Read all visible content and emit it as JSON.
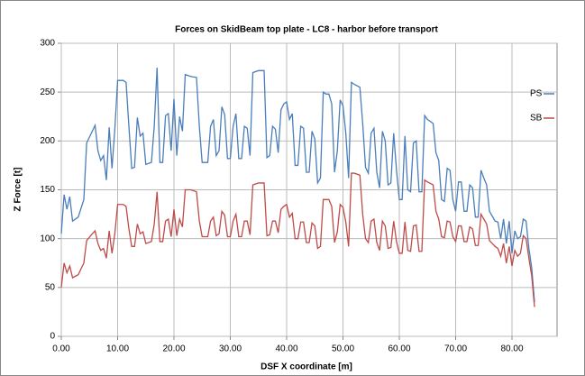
{
  "chart_data": {
    "type": "line",
    "title": "Forces on SkidBeam top plate - LC8 - harbor before transport",
    "xlabel": "DSF X coordinate [m]",
    "ylabel": "Z Force [t]",
    "x": [
      0,
      0.5,
      1,
      1.5,
      2,
      3,
      4,
      4.5,
      5.5,
      6,
      6.5,
      7,
      7.5,
      8,
      8.5,
      9,
      9.5,
      10,
      11,
      11.5,
      12,
      12.5,
      13,
      13.5,
      14,
      14.5,
      15,
      16,
      16.5,
      17,
      17.5,
      18,
      18.5,
      19,
      19.5,
      20,
      20.5,
      21,
      21.5,
      22,
      23,
      24,
      24.5,
      25,
      26,
      26.5,
      27,
      27.5,
      28,
      28.5,
      29,
      29.5,
      30,
      30.5,
      31,
      31.5,
      32,
      32.5,
      33,
      33.5,
      34,
      35,
      36,
      36.5,
      37,
      37.5,
      38,
      38.5,
      39,
      39.5,
      40,
      40.5,
      41,
      41.5,
      42,
      42.5,
      43,
      43.5,
      44,
      44.5,
      45,
      45.5,
      46,
      46.5,
      47,
      47.5,
      48,
      48.5,
      49,
      49.5,
      50,
      50.5,
      51,
      51.5,
      52,
      53,
      53.5,
      54,
      54.5,
      55,
      55.5,
      56,
      56.5,
      57,
      57.5,
      58,
      58.5,
      59,
      59.5,
      60,
      60.5,
      61,
      61.5,
      62,
      62.5,
      63,
      63.5,
      64,
      64.5,
      65,
      66,
      66.5,
      67,
      67.5,
      68,
      68.5,
      69,
      69.5,
      70,
      70.5,
      71,
      71.5,
      72,
      72.5,
      73,
      73.5,
      74,
      74.5,
      75,
      75.5,
      76,
      76.5,
      77,
      77.5,
      78,
      78.5,
      79,
      79.5,
      80,
      80.5,
      81,
      81.5,
      82,
      82.5,
      83,
      83.5,
      84
    ],
    "series": [
      {
        "name": "PS",
        "color": "#4a7ebb",
        "values": [
          105,
          145,
          130,
          143,
          118,
          122,
          140,
          198,
          210,
          216,
          190,
          180,
          185,
          160,
          214,
          172,
          212,
          262,
          262,
          260,
          215,
          172,
          173,
          224,
          205,
          208,
          176,
          178,
          215,
          275,
          178,
          178,
          226,
          228,
          190,
          243,
          185,
          225,
          210,
          268,
          266,
          265,
          215,
          178,
          178,
          215,
          222,
          185,
          190,
          235,
          227,
          182,
          182,
          215,
          228,
          182,
          182,
          215,
          213,
          185,
          270,
          272,
          272,
          183,
          185,
          215,
          212,
          188,
          232,
          238,
          240,
          222,
          228,
          175,
          175,
          215,
          213,
          168,
          168,
          210,
          202,
          157,
          162,
          250,
          248,
          248,
          238,
          168,
          190,
          242,
          236,
          208,
          162,
          260,
          258,
          255,
          218,
          173,
          167,
          208,
          213,
          168,
          152,
          210,
          200,
          155,
          157,
          208,
          170,
          140,
          140,
          205,
          150,
          148,
          198,
          200,
          148,
          148,
          226,
          222,
          218,
          188,
          180,
          140,
          138,
          172,
          170,
          140,
          128,
          158,
          158,
          128,
          128,
          155,
          152,
          122,
          122,
          170,
          162,
          155,
          128,
          123,
          118,
          117,
          100,
          120,
          95,
          118,
          85,
          108,
          100,
          102,
          120,
          118,
          90,
          70,
          35
        ]
      },
      {
        "name": "SB",
        "color": "#be4b48",
        "values": [
          50,
          75,
          65,
          72,
          60,
          63,
          75,
          98,
          105,
          108,
          95,
          88,
          90,
          80,
          108,
          85,
          105,
          135,
          135,
          133,
          110,
          92,
          92,
          115,
          105,
          107,
          95,
          97,
          115,
          148,
          97,
          97,
          118,
          120,
          102,
          130,
          103,
          120,
          112,
          150,
          150,
          148,
          118,
          102,
          102,
          118,
          122,
          103,
          105,
          128,
          124,
          102,
          102,
          118,
          125,
          102,
          102,
          118,
          118,
          104,
          155,
          157,
          157,
          103,
          104,
          118,
          118,
          106,
          130,
          133,
          135,
          122,
          126,
          100,
          100,
          117,
          117,
          96,
          96,
          116,
          113,
          90,
          92,
          140,
          140,
          140,
          133,
          96,
          107,
          135,
          132,
          117,
          92,
          167,
          167,
          165,
          125,
          100,
          96,
          118,
          120,
          96,
          88,
          118,
          113,
          90,
          91,
          118,
          97,
          85,
          85,
          117,
          88,
          87,
          113,
          114,
          87,
          87,
          160,
          158,
          155,
          128,
          120,
          102,
          101,
          118,
          117,
          102,
          97,
          113,
          113,
          97,
          97,
          112,
          110,
          93,
          93,
          125,
          120,
          115,
          98,
          95,
          92,
          90,
          82,
          95,
          75,
          92,
          72,
          88,
          82,
          85,
          103,
          100,
          80,
          62,
          30
        ]
      }
    ],
    "xlim": [
      0,
      88
    ],
    "xticks": [
      {
        "value": 0,
        "label": "0.00"
      },
      {
        "value": 10,
        "label": "10.00"
      },
      {
        "value": 20,
        "label": "20.00"
      },
      {
        "value": 30,
        "label": "30.00"
      },
      {
        "value": 40,
        "label": "40.00"
      },
      {
        "value": 50,
        "label": "50.00"
      },
      {
        "value": 60,
        "label": "60.00"
      },
      {
        "value": 70,
        "label": "70.00"
      },
      {
        "value": 80,
        "label": "80.00"
      }
    ],
    "ylim": [
      0,
      300
    ],
    "yticks": [
      0,
      50,
      100,
      150,
      200,
      250,
      300
    ],
    "grid": true,
    "legend": "upper right"
  }
}
